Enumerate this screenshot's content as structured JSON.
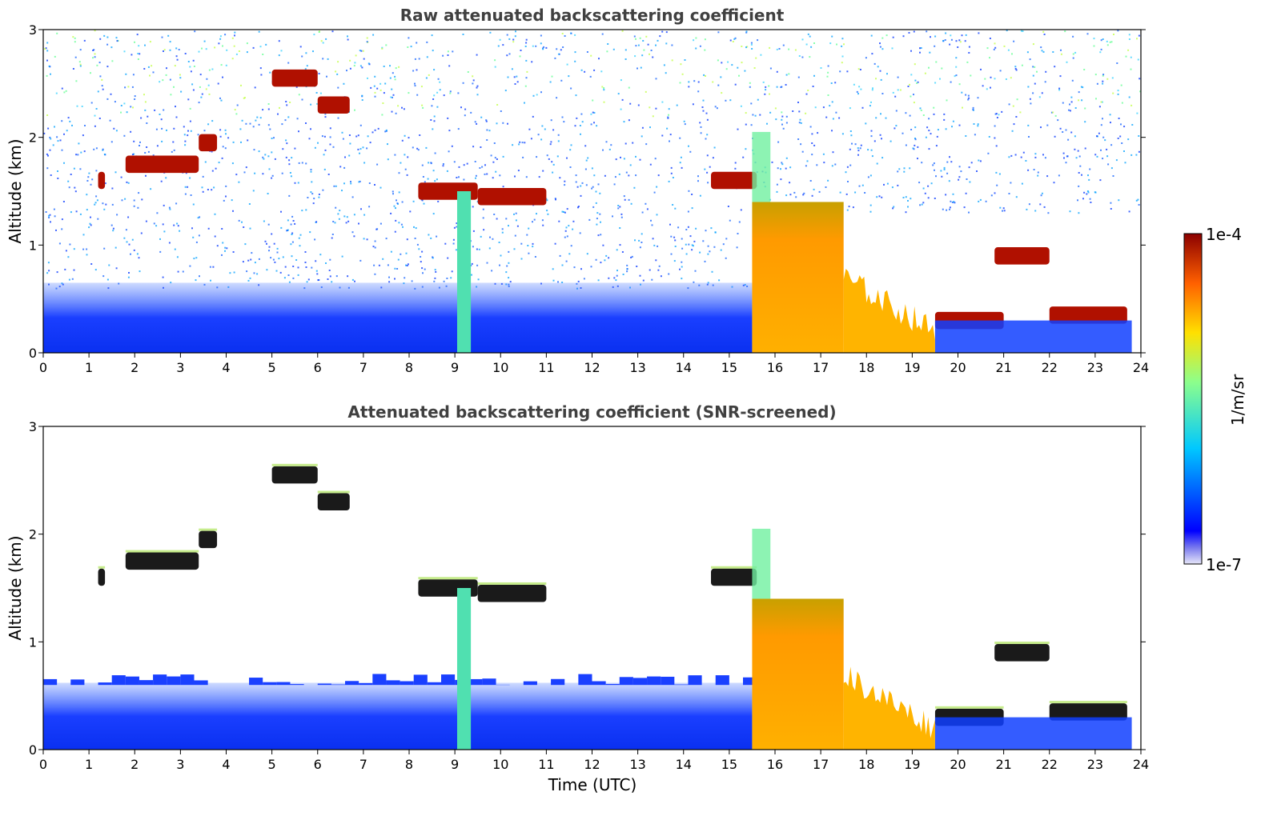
{
  "chart_data": [
    {
      "type": "heatmap",
      "title": "Raw attenuated backscattering coefficient",
      "xlabel": "",
      "ylabel": "Altitude (km)",
      "xlim": [
        0,
        24
      ],
      "ylim": [
        0,
        3
      ],
      "xticks": [
        0,
        1,
        2,
        3,
        4,
        5,
        6,
        7,
        8,
        9,
        10,
        11,
        12,
        13,
        14,
        15,
        16,
        17,
        18,
        19,
        20,
        21,
        22,
        23,
        24
      ],
      "yticks": [
        0,
        1,
        2,
        3
      ],
      "features": [
        {
          "kind": "boundary_layer",
          "x": [
            0,
            15.5
          ],
          "ytop": 0.65
        },
        {
          "kind": "cloud",
          "x": [
            1.2,
            1.35
          ],
          "y": 1.6
        },
        {
          "kind": "cloud",
          "x": [
            1.8,
            3.4
          ],
          "y": 1.75
        },
        {
          "kind": "cloud",
          "x": [
            3.4,
            3.8
          ],
          "y": 1.95
        },
        {
          "kind": "cloud",
          "x": [
            5.0,
            6.0
          ],
          "y": 2.55
        },
        {
          "kind": "cloud",
          "x": [
            6.0,
            6.7
          ],
          "y": 2.3
        },
        {
          "kind": "cloud",
          "x": [
            8.2,
            9.5
          ],
          "y": 1.5
        },
        {
          "kind": "cloud",
          "x": [
            9.5,
            11.0
          ],
          "y": 1.45
        },
        {
          "kind": "cloud",
          "x": [
            14.6,
            15.6
          ],
          "y": 1.6
        },
        {
          "kind": "aerosol_plume",
          "x": [
            9.05,
            9.35
          ],
          "ytop": 1.5
        },
        {
          "kind": "dense_layer",
          "x": [
            15.5,
            17.5
          ],
          "ytop": 1.4
        },
        {
          "kind": "decaying_layer",
          "x": [
            17.5,
            19.5
          ],
          "ytop": 0.7
        },
        {
          "kind": "cloud",
          "x": [
            19.5,
            21.0
          ],
          "y": 0.3
        },
        {
          "kind": "cloud",
          "x": [
            20.8,
            22.0
          ],
          "y": 0.9
        },
        {
          "kind": "cloud",
          "x": [
            22.0,
            23.7
          ],
          "y": 0.35
        }
      ]
    },
    {
      "type": "heatmap",
      "title": "Attenuated backscattering coefficient (SNR-screened)",
      "xlabel": "Time (UTC)",
      "ylabel": "Altitude (km)",
      "xlim": [
        0,
        24
      ],
      "ylim": [
        0,
        3
      ],
      "xticks": [
        0,
        1,
        2,
        3,
        4,
        5,
        6,
        7,
        8,
        9,
        10,
        11,
        12,
        13,
        14,
        15,
        16,
        17,
        18,
        19,
        20,
        21,
        22,
        23,
        24
      ],
      "yticks": [
        0,
        1,
        2,
        3
      ]
    }
  ],
  "colorbar": {
    "label": "1/m/sr",
    "min_label": "1e-7",
    "max_label": "1e-4",
    "colormap": "jet"
  }
}
